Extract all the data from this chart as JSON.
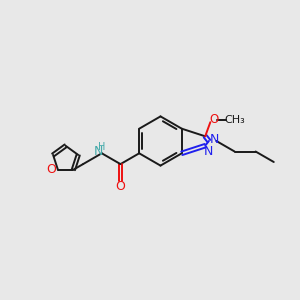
{
  "background_color": "#e8e8e8",
  "bond_color": "#1a1a1a",
  "nitrogen_color": "#2020ee",
  "oxygen_color": "#ee1111",
  "nh_color": "#44aaaa",
  "figsize": [
    3.0,
    3.0
  ],
  "dpi": 100,
  "xlim": [
    0,
    10
  ],
  "ylim": [
    0,
    10
  ]
}
